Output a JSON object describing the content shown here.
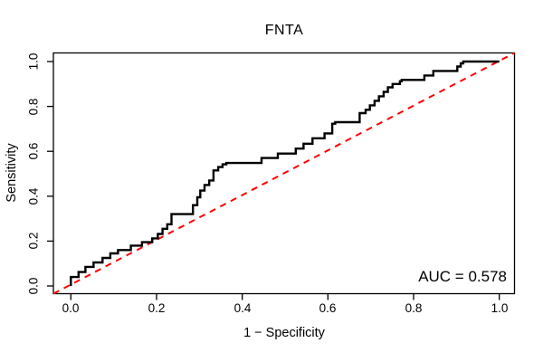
{
  "chart_data": {
    "type": "line",
    "subtype": "roc-step-curve",
    "title": "FNTA",
    "xlabel": "1 − Specificity",
    "ylabel": "Sensitivity",
    "xlim": [
      0.0,
      1.0
    ],
    "ylim": [
      0.0,
      1.0
    ],
    "grid": false,
    "legend": "none",
    "x_ticks": [
      0.0,
      0.2,
      0.4,
      0.6,
      0.8,
      1.0
    ],
    "y_ticks": [
      0.0,
      0.2,
      0.4,
      0.6,
      0.8,
      1.0
    ],
    "x_tick_labels": [
      "0.0",
      "0.2",
      "0.4",
      "0.6",
      "0.8",
      "1.0"
    ],
    "y_tick_labels": [
      "0.0",
      "0.2",
      "0.4",
      "0.6",
      "0.8",
      "1.0"
    ],
    "auc": 0.578,
    "auc_label": "AUC = 0.578",
    "colors": {
      "roc_curve": "#000000",
      "reference_line": "#FF0000",
      "box": "#000000"
    },
    "series": [
      {
        "name": "ROC curve",
        "style": "solid-step",
        "color": "#000000",
        "points": [
          [
            0.0,
            0.0
          ],
          [
            0.0,
            0.04
          ],
          [
            0.018,
            0.04
          ],
          [
            0.018,
            0.062
          ],
          [
            0.034,
            0.062
          ],
          [
            0.034,
            0.085
          ],
          [
            0.053,
            0.085
          ],
          [
            0.053,
            0.105
          ],
          [
            0.074,
            0.105
          ],
          [
            0.074,
            0.125
          ],
          [
            0.092,
            0.125
          ],
          [
            0.092,
            0.145
          ],
          [
            0.11,
            0.145
          ],
          [
            0.11,
            0.16
          ],
          [
            0.14,
            0.16
          ],
          [
            0.14,
            0.18
          ],
          [
            0.166,
            0.18
          ],
          [
            0.166,
            0.195
          ],
          [
            0.19,
            0.195
          ],
          [
            0.19,
            0.212
          ],
          [
            0.203,
            0.212
          ],
          [
            0.203,
            0.232
          ],
          [
            0.214,
            0.232
          ],
          [
            0.214,
            0.255
          ],
          [
            0.225,
            0.255
          ],
          [
            0.225,
            0.275
          ],
          [
            0.235,
            0.275
          ],
          [
            0.235,
            0.32
          ],
          [
            0.285,
            0.32
          ],
          [
            0.285,
            0.36
          ],
          [
            0.295,
            0.36
          ],
          [
            0.295,
            0.395
          ],
          [
            0.302,
            0.395
          ],
          [
            0.302,
            0.425
          ],
          [
            0.312,
            0.425
          ],
          [
            0.312,
            0.45
          ],
          [
            0.323,
            0.45
          ],
          [
            0.323,
            0.47
          ],
          [
            0.333,
            0.47
          ],
          [
            0.333,
            0.515
          ],
          [
            0.344,
            0.515
          ],
          [
            0.344,
            0.53
          ],
          [
            0.354,
            0.53
          ],
          [
            0.354,
            0.542
          ],
          [
            0.363,
            0.542
          ],
          [
            0.363,
            0.548
          ],
          [
            0.445,
            0.548
          ],
          [
            0.445,
            0.57
          ],
          [
            0.483,
            0.57
          ],
          [
            0.483,
            0.59
          ],
          [
            0.525,
            0.59
          ],
          [
            0.525,
            0.612
          ],
          [
            0.543,
            0.612
          ],
          [
            0.543,
            0.634
          ],
          [
            0.564,
            0.634
          ],
          [
            0.564,
            0.658
          ],
          [
            0.592,
            0.658
          ],
          [
            0.592,
            0.68
          ],
          [
            0.61,
            0.68
          ],
          [
            0.61,
            0.723
          ],
          [
            0.617,
            0.723
          ],
          [
            0.617,
            0.73
          ],
          [
            0.674,
            0.73
          ],
          [
            0.674,
            0.77
          ],
          [
            0.688,
            0.77
          ],
          [
            0.688,
            0.785
          ],
          [
            0.698,
            0.785
          ],
          [
            0.698,
            0.805
          ],
          [
            0.709,
            0.805
          ],
          [
            0.709,
            0.825
          ],
          [
            0.719,
            0.825
          ],
          [
            0.719,
            0.845
          ],
          [
            0.73,
            0.845
          ],
          [
            0.73,
            0.865
          ],
          [
            0.74,
            0.865
          ],
          [
            0.74,
            0.885
          ],
          [
            0.751,
            0.885
          ],
          [
            0.751,
            0.9
          ],
          [
            0.768,
            0.9
          ],
          [
            0.768,
            0.912
          ],
          [
            0.772,
            0.912
          ],
          [
            0.772,
            0.918
          ],
          [
            0.825,
            0.918
          ],
          [
            0.825,
            0.938
          ],
          [
            0.846,
            0.938
          ],
          [
            0.846,
            0.958
          ],
          [
            0.902,
            0.958
          ],
          [
            0.902,
            0.978
          ],
          [
            0.91,
            0.978
          ],
          [
            0.91,
            0.992
          ],
          [
            0.916,
            0.992
          ],
          [
            0.916,
            1.0
          ],
          [
            1.0,
            1.0
          ]
        ]
      },
      {
        "name": "chance diagonal",
        "style": "dashed",
        "color": "#FF0000",
        "points": [
          [
            0.0,
            0.0
          ],
          [
            1.0,
            1.0
          ]
        ]
      }
    ]
  }
}
